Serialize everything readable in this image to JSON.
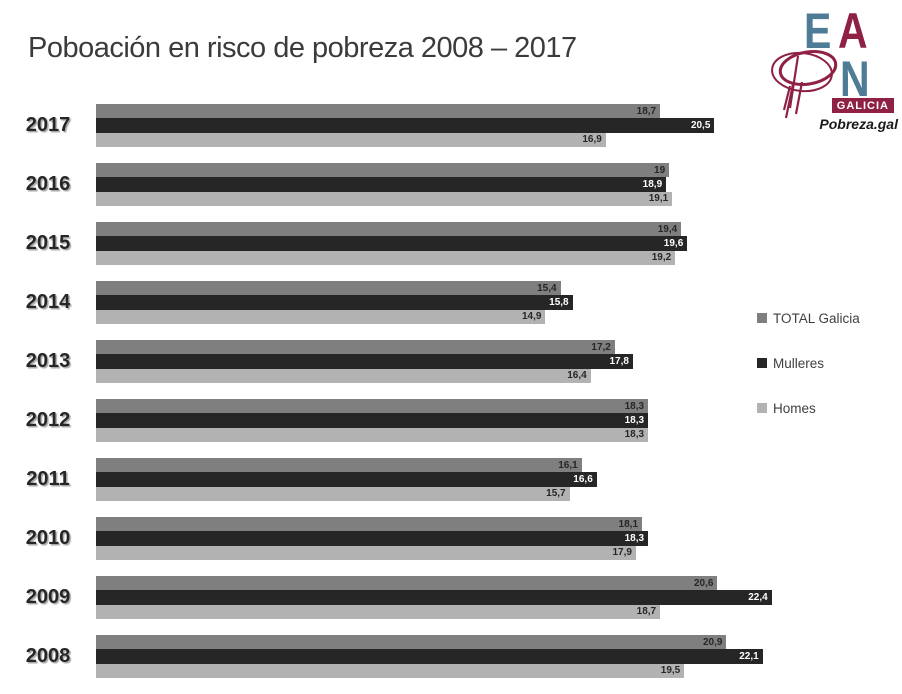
{
  "title": "Poboación en risco de pobreza 2008 – 2017",
  "logo": {
    "letter_e": "E",
    "letter_a": "A",
    "letter_n": "N",
    "region": "GALICIA",
    "site": "Pobreza.gal",
    "colors": {
      "blue": "#4E7C96",
      "maroon": "#8E2144"
    }
  },
  "legend": {
    "items": [
      {
        "label": "TOTAL Galicia",
        "color": "#7F7F7F"
      },
      {
        "label": "Mulleres",
        "color": "#262626"
      },
      {
        "label": "Homes",
        "color": "#B2B2B2"
      }
    ]
  },
  "chart_data": {
    "type": "bar",
    "orientation": "horizontal",
    "title": "Poboación en risco de pobreza 2008 – 2017",
    "categories": [
      "2017",
      "2016",
      "2015",
      "2014",
      "2013",
      "2012",
      "2011",
      "2010",
      "2009",
      "2008"
    ],
    "series": [
      {
        "name": "TOTAL Galicia",
        "color": "#7F7F7F",
        "label_color": "#262626",
        "values": [
          18.7,
          19,
          19.4,
          15.4,
          17.2,
          18.3,
          16.1,
          18.1,
          20.6,
          20.9
        ]
      },
      {
        "name": "Mulleres",
        "color": "#262626",
        "label_color": "#FFFFFF",
        "values": [
          20.5,
          18.9,
          19.6,
          15.8,
          17.8,
          18.3,
          16.6,
          18.3,
          22.4,
          22.1
        ]
      },
      {
        "name": "Homes",
        "color": "#B2B2B2",
        "label_color": "#262626",
        "values": [
          16.9,
          19.1,
          19.2,
          14.9,
          16.4,
          18.3,
          15.7,
          17.9,
          18.7,
          19.5
        ]
      }
    ],
    "xlim": [
      0,
      24
    ],
    "value_labels": "inside-end, decimal comma",
    "grid": false,
    "legend_position": "right"
  }
}
